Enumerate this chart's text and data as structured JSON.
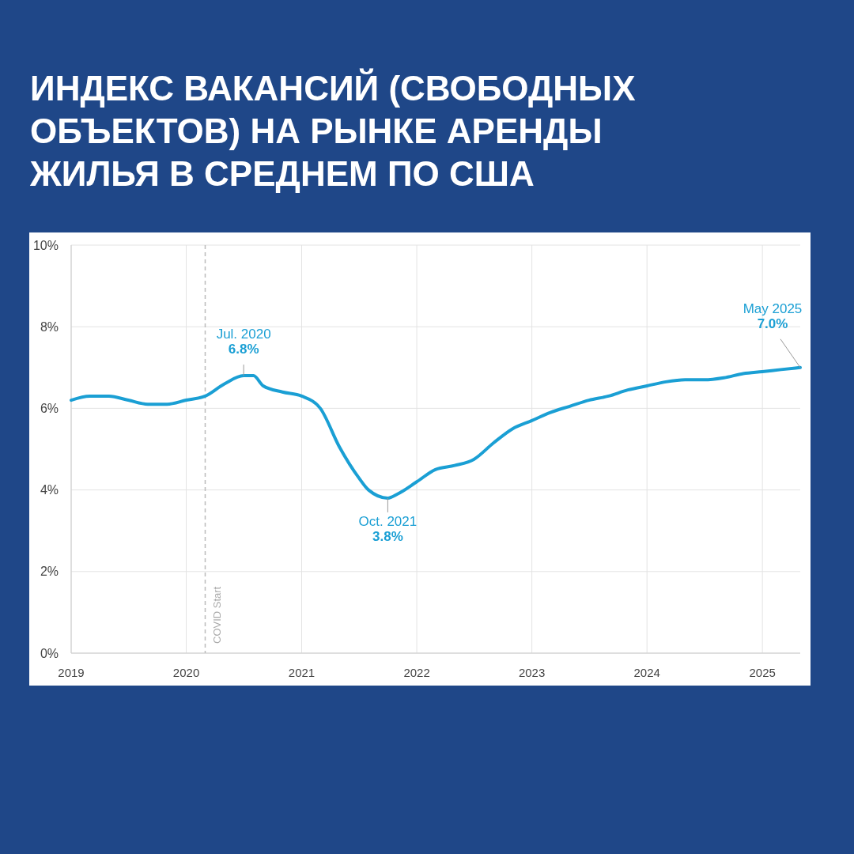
{
  "chart_data": {
    "type": "line",
    "title": "ИНДЕКС ВАКАНСИЙ (СВОБОДНЫХ ОБЪЕКТОВ) НА РЫНКЕ АРЕНДЫ ЖИЛЬЯ В СРЕДНЕМ ПО США",
    "x": [
      "2019-01",
      "2019-03",
      "2019-05",
      "2019-07",
      "2019-09",
      "2019-11",
      "2020-01",
      "2020-03",
      "2020-05",
      "2020-07",
      "2020-08",
      "2020-09",
      "2020-11",
      "2021-01",
      "2021-03",
      "2021-05",
      "2021-07",
      "2021-08",
      "2021-10",
      "2021-11",
      "2022-01",
      "2022-03",
      "2022-05",
      "2022-07",
      "2022-09",
      "2022-11",
      "2023-01",
      "2023-03",
      "2023-05",
      "2023-07",
      "2023-09",
      "2023-11",
      "2024-01",
      "2024-03",
      "2024-05",
      "2024-07",
      "2024-09",
      "2024-11",
      "2025-01",
      "2025-03",
      "2025-05"
    ],
    "series": [
      {
        "color": "#1a9fd4",
        "values": [
          6.2,
          6.3,
          6.3,
          6.2,
          6.1,
          6.1,
          6.2,
          6.3,
          6.6,
          6.8,
          6.8,
          6.55,
          6.4,
          6.3,
          6.0,
          5.05,
          4.3,
          4.0,
          3.8,
          3.9,
          4.2,
          4.5,
          4.6,
          4.75,
          5.15,
          5.5,
          5.7,
          5.9,
          6.05,
          6.2,
          6.3,
          6.45,
          6.55,
          6.65,
          6.7,
          6.7,
          6.75,
          6.85,
          6.9,
          6.95,
          7.0
        ]
      }
    ],
    "xlim": [
      "2019-01",
      "2025-05"
    ],
    "xticks": [
      {
        "value": "2019",
        "label": "2019"
      },
      {
        "value": "2020",
        "label": "2020"
      },
      {
        "value": "2021",
        "label": "2021"
      },
      {
        "value": "2022",
        "label": "2022"
      },
      {
        "value": "2023",
        "label": "2023"
      },
      {
        "value": "2024",
        "label": "2024"
      },
      {
        "value": "2025",
        "label": "2025"
      }
    ],
    "ylim": [
      0,
      10
    ],
    "yticks": [
      {
        "value": 0,
        "label": "0%"
      },
      {
        "value": 2,
        "label": "2%"
      },
      {
        "value": 4,
        "label": "4%"
      },
      {
        "value": 6,
        "label": "6%"
      },
      {
        "value": 8,
        "label": "8%"
      },
      {
        "value": 10,
        "label": "10%"
      }
    ],
    "grid": true,
    "line_style": "solid",
    "marker": "none",
    "ref_lines": [
      {
        "axis": "x",
        "value": "2020-03",
        "label": "COVID Start",
        "color": "#bbbbbb",
        "line_style": "dashed"
      }
    ],
    "annotations": [
      {
        "text": "Jul. 2020\n6.8%",
        "x": "2020-07",
        "y": 6.8
      },
      {
        "text": "Oct. 2021\n3.8%",
        "x": "2021-10",
        "y": 3.8
      },
      {
        "text": "May 2025\n7.0%",
        "x": "2025-05",
        "y": 7.0
      }
    ]
  }
}
